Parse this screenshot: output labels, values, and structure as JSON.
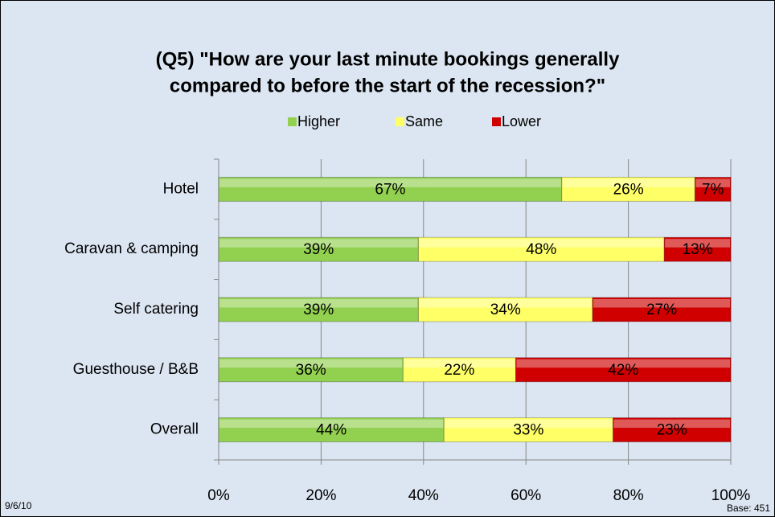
{
  "chart_data": {
    "type": "stacked_barh",
    "title": [
      "(Q5) \"How are your last minute bookings generally",
      "compared to before the start of the recession?\""
    ],
    "categories": [
      "Hotel",
      "Caravan & camping",
      "Self catering",
      "Guesthouse / B&B",
      "Overall"
    ],
    "series": [
      {
        "name": "Higher",
        "color": "#92d050",
        "values": [
          67,
          39,
          39,
          36,
          44
        ],
        "value_labels": [
          "67%",
          "39%",
          "39%",
          "36%",
          "44%"
        ]
      },
      {
        "name": "Same",
        "color": "#ffff66",
        "values": [
          26,
          48,
          34,
          22,
          33
        ],
        "value_labels": [
          "26%",
          "48%",
          "34%",
          "22%",
          "33%"
        ]
      },
      {
        "name": "Lower",
        "color": "#d00000",
        "values": [
          7,
          13,
          27,
          42,
          23
        ],
        "value_labels": [
          "7%",
          "13%",
          "27%",
          "42%",
          "23%"
        ]
      }
    ],
    "xlim": [
      0,
      100
    ],
    "xticks": [
      {
        "value": 0,
        "label": "0%"
      },
      {
        "value": 20,
        "label": "20%"
      },
      {
        "value": 40,
        "label": "40%"
      },
      {
        "value": 60,
        "label": "60%"
      },
      {
        "value": 80,
        "label": "80%"
      },
      {
        "value": 100,
        "label": "100%"
      }
    ],
    "grid": true,
    "legend": "top",
    "date": "9/6/10",
    "note": "Base: 451"
  }
}
